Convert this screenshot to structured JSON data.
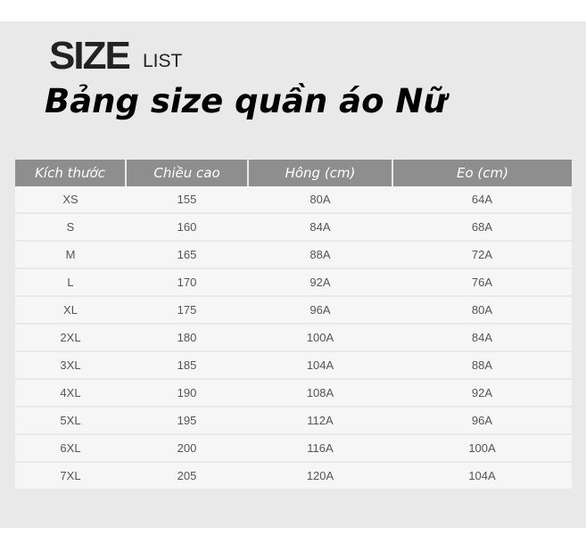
{
  "heading": {
    "size": "SIZE",
    "list": "LIST",
    "title": "Bảng size quần áo Nữ"
  },
  "table": {
    "headers": [
      "Kích thước",
      "Chiều cao",
      "Hông (cm)",
      "Eo (cm)"
    ],
    "rows": [
      [
        "XS",
        "155",
        "80A",
        "64A"
      ],
      [
        "S",
        "160",
        "84A",
        "68A"
      ],
      [
        "M",
        "165",
        "88A",
        "72A"
      ],
      [
        "L",
        "170",
        "92A",
        "76A"
      ],
      [
        "XL",
        "175",
        "96A",
        "80A"
      ],
      [
        "2XL",
        "180",
        "100A",
        "84A"
      ],
      [
        "3XL",
        "185",
        "104A",
        "88A"
      ],
      [
        "4XL",
        "190",
        "108A",
        "92A"
      ],
      [
        "5XL",
        "195",
        "112A",
        "96A"
      ],
      [
        "6XL",
        "200",
        "116A",
        "100A"
      ],
      [
        "7XL",
        "205",
        "120A",
        "104A"
      ]
    ]
  }
}
